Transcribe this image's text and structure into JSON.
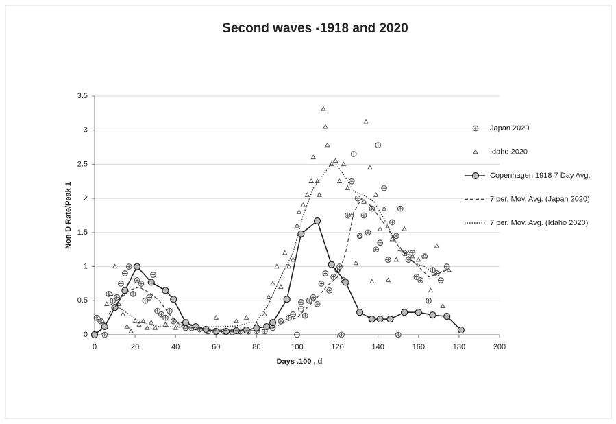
{
  "chart_data": {
    "type": "scatter",
    "title": "Second waves -1918 and 2020",
    "x_label": "Days .100 , d",
    "y_label": "Non-D Rate/Peak 1",
    "xlim": [
      0,
      200
    ],
    "ylim": [
      0,
      3.5
    ],
    "xticks": [
      0,
      20,
      40,
      60,
      80,
      100,
      120,
      140,
      160,
      180,
      200
    ],
    "yticks": [
      0,
      0.5,
      1,
      1.5,
      2,
      2.5,
      3,
      3.5
    ],
    "grid": true,
    "legend": "right",
    "series": [
      {
        "name": "Japan 2020",
        "color": "#555555",
        "marker": "circle-plus",
        "line": "none",
        "x": [
          1,
          3,
          5,
          7,
          9,
          11,
          13,
          15,
          17,
          19,
          21,
          23,
          25,
          27,
          29,
          31,
          33,
          35,
          37,
          39,
          42,
          45,
          48,
          52,
          56,
          60,
          64,
          68,
          72,
          76,
          80,
          84,
          88,
          92,
          96,
          98,
          100,
          102,
          104,
          106,
          108,
          110,
          112,
          114,
          116,
          118,
          120,
          121,
          123,
          125,
          127,
          128,
          130,
          131,
          133,
          135,
          137,
          139,
          140,
          141,
          143,
          145,
          147,
          149,
          150,
          151,
          153,
          155,
          157,
          159,
          161,
          163,
          165,
          167,
          169,
          171,
          174,
          122,
          102
        ],
        "values": [
          0.25,
          0.2,
          0,
          0.6,
          0.5,
          0.55,
          0.75,
          0.9,
          1.0,
          0.6,
          0.8,
          0.75,
          0.5,
          0.55,
          0.88,
          0.35,
          0.3,
          0.25,
          0.35,
          0.2,
          0.15,
          0.1,
          0.1,
          0.08,
          0.05,
          0.05,
          0.05,
          0.04,
          0.05,
          0.05,
          0.05,
          0.05,
          0.1,
          0.2,
          0.25,
          0.3,
          0,
          0.48,
          0.28,
          0.5,
          0.55,
          0.45,
          0.75,
          0.9,
          0.65,
          0.85,
          0.95,
          1.0,
          0.8,
          1.75,
          2.25,
          2.65,
          2.0,
          1.45,
          1.75,
          1.5,
          1.85,
          1.25,
          2.78,
          1.35,
          2.15,
          1.1,
          1.65,
          1.45,
          0,
          1.85,
          1.2,
          1.1,
          1.2,
          0.85,
          0.8,
          1.15,
          0.5,
          0.95,
          0.9,
          0.8,
          1.0,
          0,
          0.38
        ]
      },
      {
        "name": "Idaho 2020",
        "color": "#555555",
        "marker": "triangle",
        "line": "none",
        "x": [
          2,
          4,
          6,
          8,
          10,
          12,
          14,
          16,
          18,
          20,
          22,
          24,
          26,
          28,
          30,
          35,
          40,
          45,
          50,
          55,
          60,
          65,
          70,
          75,
          80,
          84,
          86,
          88,
          90,
          92,
          94,
          96,
          98,
          100,
          101,
          103,
          105,
          107,
          108,
          110,
          111,
          113,
          114,
          115,
          117,
          119,
          121,
          123,
          125,
          127,
          129,
          131,
          133,
          134,
          136,
          137,
          139,
          141,
          143,
          145,
          147,
          149,
          151,
          153,
          155,
          157,
          160,
          163,
          166,
          169,
          172,
          175
        ],
        "values": [
          0.25,
          0.2,
          0.45,
          0.6,
          1.0,
          0.45,
          0.3,
          0.12,
          0.05,
          0.2,
          0.15,
          0.2,
          0.1,
          0.18,
          0.1,
          0.15,
          0.1,
          0.12,
          0.1,
          0.1,
          0.25,
          0.05,
          0.2,
          0.25,
          0.15,
          0.3,
          0.55,
          0.75,
          1.0,
          0.7,
          1.2,
          1.0,
          1.1,
          1.6,
          1.8,
          1.9,
          2.05,
          2.25,
          2.6,
          2.25,
          2.05,
          3.31,
          3.05,
          2.78,
          2.5,
          2.55,
          2.25,
          2.5,
          2.15,
          1.75,
          1.05,
          1.45,
          1.95,
          3.12,
          2.45,
          0.78,
          2.05,
          1.55,
          1.85,
          0.8,
          1.4,
          1.1,
          1.25,
          1.55,
          1.2,
          1.15,
          1.1,
          1.15,
          0.65,
          1.3,
          0.42,
          0.95
        ]
      },
      {
        "name": "Copenhagen 1918  7 Day Avg.",
        "color": "#222222",
        "marker": "circle",
        "line": "solid",
        "x": [
          0,
          5,
          10,
          15,
          21,
          28,
          35,
          39,
          45,
          50,
          55,
          60,
          65,
          70,
          75,
          80,
          85,
          88,
          95,
          102,
          110,
          117,
          124,
          131,
          137,
          141,
          146,
          153,
          160,
          167,
          174,
          181
        ],
        "values": [
          0,
          0.12,
          0.4,
          0.65,
          1.0,
          0.77,
          0.65,
          0.52,
          0.18,
          0.12,
          0.08,
          0.05,
          0.05,
          0.06,
          0.07,
          0.1,
          0.12,
          0.18,
          0.52,
          1.48,
          1.67,
          1.03,
          0.77,
          0.33,
          0.23,
          0.23,
          0.23,
          0.33,
          0.33,
          0.29,
          0.27,
          0.07
        ]
      },
      {
        "name": "7 per. Mov. Avg. (Japan 2020)",
        "color": "#444444",
        "marker": "none",
        "line": "dashed",
        "x": [
          7,
          12,
          17,
          22,
          27,
          32,
          37,
          42,
          50,
          60,
          70,
          80,
          88,
          95,
          100,
          105,
          110,
          115,
          120,
          124,
          128,
          132,
          136,
          140,
          145,
          150,
          155,
          160,
          165,
          170,
          174
        ],
        "values": [
          0.3,
          0.5,
          0.65,
          0.7,
          0.62,
          0.5,
          0.3,
          0.15,
          0.1,
          0.07,
          0.06,
          0.06,
          0.1,
          0.2,
          0.25,
          0.4,
          0.55,
          0.72,
          0.85,
          1.2,
          1.8,
          2.0,
          1.9,
          1.75,
          1.55,
          1.3,
          1.15,
          1.0,
          0.85,
          0.9,
          0.95
        ]
      },
      {
        "name": "7 per. Mov. Avg. (Idaho 2020)",
        "color": "#333333",
        "marker": "none",
        "line": "dotted",
        "x": [
          8,
          12,
          17,
          22,
          27,
          32,
          40,
          50,
          60,
          70,
          80,
          86,
          92,
          98,
          103,
          108,
          113,
          118,
          123,
          128,
          133,
          138,
          143,
          148,
          153,
          158,
          163,
          168,
          174
        ],
        "values": [
          0.45,
          0.4,
          0.3,
          0.2,
          0.15,
          0.12,
          0.12,
          0.11,
          0.12,
          0.13,
          0.2,
          0.45,
          0.85,
          1.2,
          1.75,
          2.15,
          2.35,
          2.55,
          2.35,
          2.1,
          2.05,
          1.95,
          1.7,
          1.4,
          1.2,
          1.05,
          1.0,
          0.9,
          0.95
        ]
      }
    ]
  }
}
